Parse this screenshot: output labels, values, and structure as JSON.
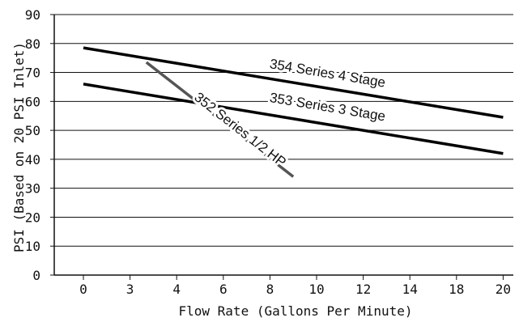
{
  "chart_data": {
    "type": "line",
    "title": "",
    "xlabel": "Flow Rate (Gallons Per Minute)",
    "ylabel": "PSI (Based on 20 PSI Inlet)",
    "x_tick_labels": [
      "0",
      "3",
      "4",
      "6",
      "8",
      "10",
      "12",
      "14",
      "18",
      "20"
    ],
    "y_ticks": [
      0,
      10,
      20,
      30,
      40,
      50,
      60,
      70,
      80,
      90
    ],
    "ylim": [
      0,
      90
    ],
    "grid": "horizontal",
    "legend": "none",
    "line_colors": {
      "353 Series 3 Stage": "#000000",
      "354 Series 4 Stage": "#000000",
      "352 Series 1/2 HP": "#555555"
    },
    "series": [
      {
        "name": "354 Series 4 Stage",
        "x_tick_positions": [
          0,
          9
        ],
        "points_gpm": [
          [
            0,
            78.5
          ],
          [
            20,
            54.5
          ]
        ]
      },
      {
        "name": "353 Series 3 Stage",
        "x_tick_positions": [
          0,
          9
        ],
        "points_gpm": [
          [
            0,
            66
          ],
          [
            20,
            42
          ]
        ]
      },
      {
        "name": "352 Series 1/2 HP",
        "x_tick_positions": [
          1,
          5
        ],
        "points_gpm": [
          [
            3,
            73.5
          ],
          [
            10,
            34
          ]
        ]
      }
    ]
  }
}
